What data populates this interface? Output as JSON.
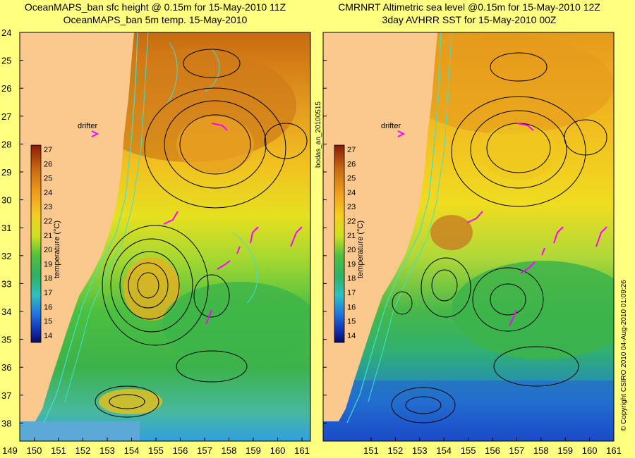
{
  "panels": [
    {
      "title_line1": "OceanMAPS_ban sfc height @ 0.15m for 15-May-2010 11Z",
      "title_line2": "OceanMAPS_ban 5m temp. 15-May-2010",
      "drifter_label": "drifter",
      "colorbar_label": "temperature (°C)"
    },
    {
      "title_line1": "CMRNRT Altimetric sea level  @0.15m  for 15-May-2010 12Z",
      "title_line2": "3day AVHRR SST for 15-May-2010 00Z",
      "drifter_label": "drifter",
      "colorbar_label": "temperature (°C)"
    }
  ],
  "middle_label": "bodas_an_20100515",
  "copyright": "© Copyright CSIRO 2010   04-Aug-2010 01:09:26",
  "y_ticks": [
    "24",
    "25",
    "26",
    "27",
    "28",
    "29",
    "30",
    "31",
    "32",
    "33",
    "34",
    "35",
    "36",
    "37",
    "38"
  ],
  "x_ticks_left": [
    "149",
    "150",
    "151",
    "152",
    "153",
    "154",
    "155",
    "156",
    "157",
    "158",
    "159",
    "160",
    "161"
  ],
  "x_ticks_right": [
    "151",
    "152",
    "153",
    "154",
    "155",
    "156",
    "157",
    "158",
    "159",
    "160",
    "161"
  ],
  "colorbar_ticks": [
    "27",
    "26",
    "25",
    "24",
    "23",
    "22",
    "21",
    "20",
    "19",
    "18",
    "17",
    "16",
    "15",
    "14"
  ],
  "colors": {
    "land": "#fbc98d",
    "page": "#ffff80",
    "contour": "#000000",
    "bathymetry": "#40e0d0",
    "drifter": "#ff00ff"
  }
}
